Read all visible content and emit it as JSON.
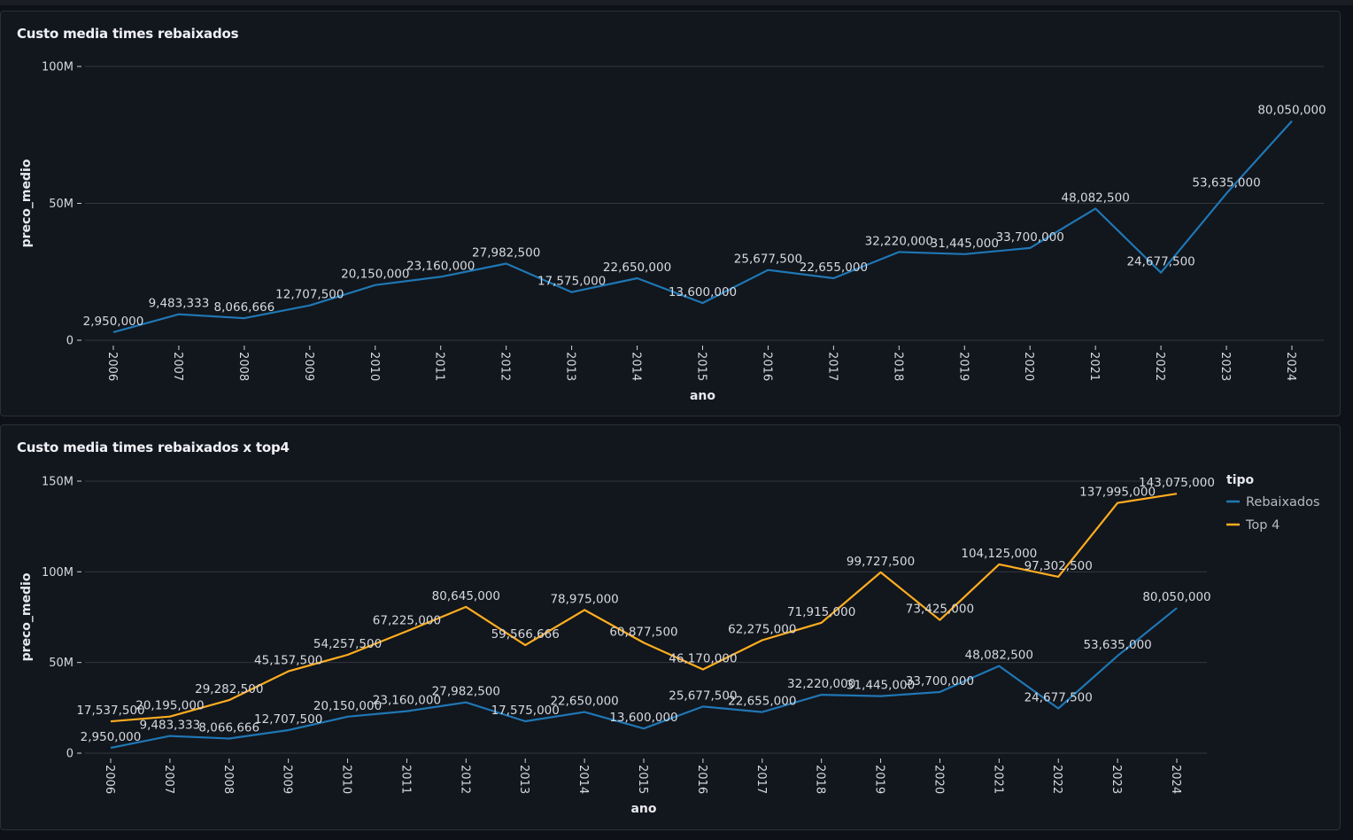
{
  "chart_data": [
    {
      "type": "line",
      "title": "Custo media times rebaixados",
      "xlabel": "ano",
      "ylabel": "preco_medio",
      "ylim": [
        0,
        100000000
      ],
      "yticks": [
        {
          "value": 0,
          "label": "0"
        },
        {
          "value": 50000000,
          "label": "50M"
        },
        {
          "value": 100000000,
          "label": "100M"
        }
      ],
      "grid": true,
      "legend": null,
      "x": [
        "2006",
        "2007",
        "2008",
        "2009",
        "2010",
        "2011",
        "2012",
        "2013",
        "2014",
        "2015",
        "2016",
        "2017",
        "2018",
        "2019",
        "2020",
        "2021",
        "2022",
        "2023",
        "2024"
      ],
      "series": [
        {
          "name": "",
          "color": "#1f77b4",
          "values": [
            2950000,
            9483333,
            8066666,
            12707500,
            20150000,
            23160000,
            27982500,
            17575000,
            22650000,
            13600000,
            25677500,
            22655000,
            32220000,
            31445000,
            33700000,
            48082500,
            24677500,
            53635000,
            80050000
          ],
          "labels": [
            "2,950,000",
            "9,483,333",
            "8,066,666",
            "12,707,500",
            "20,150,000",
            "23,160,000",
            "27,982,500",
            "17,575,000",
            "22,650,000",
            "13,600,000",
            "25,677,500",
            "22,655,000",
            "32,220,000",
            "31,445,000",
            "33,700,000",
            "48,082,500",
            "24,677,500",
            "53,635,000",
            "80,050,000"
          ]
        }
      ]
    },
    {
      "type": "line",
      "title": "Custo media times rebaixados x top4",
      "xlabel": "ano",
      "ylabel": "preco_medio",
      "ylim": [
        0,
        150000000
      ],
      "yticks": [
        {
          "value": 0,
          "label": "0"
        },
        {
          "value": 50000000,
          "label": "50M"
        },
        {
          "value": 100000000,
          "label": "100M"
        },
        {
          "value": 150000000,
          "label": "150M"
        }
      ],
      "grid": true,
      "legend": {
        "title": "tipo",
        "position": "top-right"
      },
      "x": [
        "2006",
        "2007",
        "2008",
        "2009",
        "2010",
        "2011",
        "2012",
        "2013",
        "2014",
        "2015",
        "2016",
        "2017",
        "2018",
        "2019",
        "2020",
        "2021",
        "2022",
        "2023",
        "2024"
      ],
      "series": [
        {
          "name": "Rebaixados",
          "color": "#1f77b4",
          "values": [
            2950000,
            9483333,
            8066666,
            12707500,
            20150000,
            23160000,
            27982500,
            17575000,
            22650000,
            13600000,
            25677500,
            22655000,
            32220000,
            31445000,
            33700000,
            48082500,
            24677500,
            53635000,
            80050000
          ],
          "labels": [
            "2,950,000",
            "9,483,333",
            "8,066,666",
            "12,707,500",
            "20,150,000",
            "23,160,000",
            "27,982,500",
            "17,575,000",
            "22,650,000",
            "13,600,000",
            "25,677,500",
            "22,655,000",
            "32,220,000",
            "31,445,000",
            "33,700,000",
            "48,082,500",
            "24,677,500",
            "53,635,000",
            "80,050,000"
          ]
        },
        {
          "name": "Top 4",
          "color": "#ffad1f",
          "values": [
            17537500,
            20195000,
            29282500,
            45157500,
            54257500,
            67225000,
            80645000,
            59566666,
            78975000,
            60877500,
            46170000,
            62275000,
            71915000,
            99727500,
            73425000,
            104125000,
            97302500,
            137995000,
            143075000
          ],
          "labels": [
            "17,537,500",
            "20,195,000",
            "29,282,500",
            "45,157,500",
            "54,257,500",
            "67,225,000",
            "80,645,000",
            "59,566,666",
            "78,975,000",
            "60,877,500",
            "46,170,000",
            "62,275,000",
            "71,915,000",
            "99,727,500",
            "73,425,000",
            "104,125,000",
            "97,302,500",
            "137,995,000",
            "143,075,000"
          ]
        }
      ]
    }
  ]
}
